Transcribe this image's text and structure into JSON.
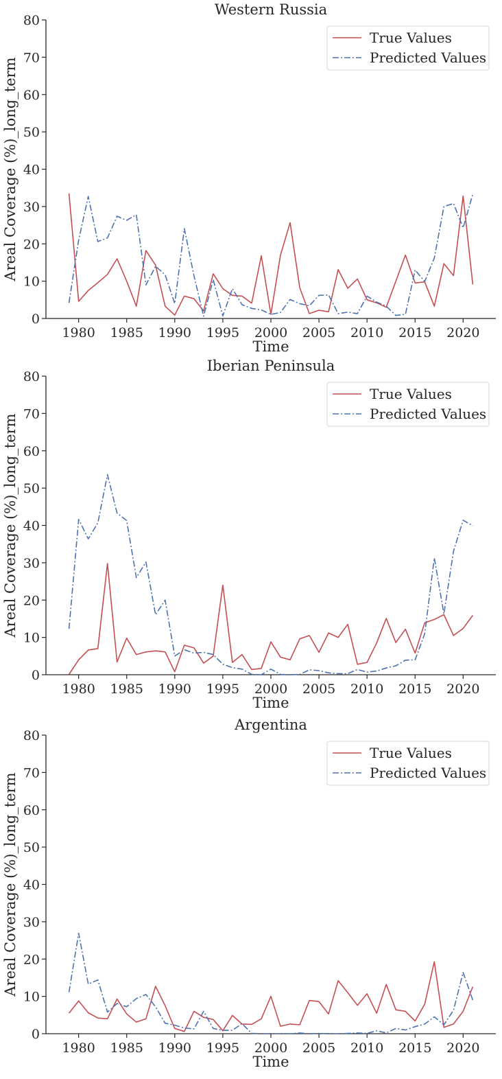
{
  "legend": {
    "true_label": "True Values",
    "pred_label": "Predicted Values"
  },
  "colors": {
    "true": "#c44e52",
    "predicted": "#4c72b0",
    "axis": "#262626"
  },
  "chart_data": [
    {
      "type": "line",
      "title": "Western Russia",
      "xlabel": "Time",
      "ylabel": "Areal Coverage (%)_long_term",
      "xlim": [
        1976.6,
        2023.4
      ],
      "ylim": [
        0,
        80
      ],
      "xticks": [
        1980,
        1985,
        1990,
        1995,
        2000,
        2005,
        2010,
        2015,
        2020
      ],
      "yticks": [
        0,
        10,
        20,
        30,
        40,
        50,
        60,
        70,
        80
      ],
      "legend_position": "top-right",
      "x": [
        1979,
        1980,
        1981,
        1982,
        1983,
        1984,
        1985,
        1986,
        1987,
        1988,
        1989,
        1990,
        1991,
        1992,
        1993,
        1994,
        1995,
        1996,
        1997,
        1998,
        1999,
        2000,
        2001,
        2002,
        2003,
        2004,
        2005,
        2006,
        2007,
        2008,
        2009,
        2010,
        2011,
        2012,
        2013,
        2014,
        2015,
        2016,
        2017,
        2018,
        2019,
        2020,
        2021
      ],
      "series": [
        {
          "name": "True Values",
          "values": [
            33.5,
            4.6,
            7.5,
            9.6,
            11.8,
            16.0,
            10.0,
            3.3,
            18.2,
            14.3,
            3.3,
            0.9,
            6.0,
            5.3,
            2.0,
            12.0,
            8.0,
            6.2,
            6.0,
            4.1,
            16.8,
            1.1,
            17.0,
            25.7,
            8.2,
            1.3,
            2.2,
            1.8,
            13.1,
            8.1,
            10.6,
            5.0,
            4.2,
            3.0,
            10.0,
            17.0,
            9.5,
            9.8,
            3.3,
            14.7,
            11.5,
            32.8,
            9.1
          ]
        },
        {
          "name": "Predicted Values",
          "values": [
            4.2,
            21.0,
            32.7,
            20.6,
            21.6,
            27.4,
            26.3,
            27.8,
            9.0,
            14.0,
            11.7,
            4.0,
            24.1,
            11.4,
            0.6,
            10.4,
            0.7,
            8.0,
            3.7,
            2.7,
            2.3,
            1.1,
            1.6,
            5.1,
            4.0,
            3.4,
            6.2,
            6.3,
            1.3,
            1.7,
            1.3,
            6.0,
            4.4,
            3.3,
            0.8,
            1.1,
            13.0,
            9.9,
            16.2,
            30.0,
            30.8,
            24.3,
            33.3
          ]
        }
      ]
    },
    {
      "type": "line",
      "title": "Iberian Peninsula",
      "xlabel": "Time",
      "ylabel": "Areal Coverage (%)_long_term",
      "xlim": [
        1976.6,
        2023.4
      ],
      "ylim": [
        0,
        80
      ],
      "xticks": [
        1980,
        1985,
        1990,
        1995,
        2000,
        2005,
        2010,
        2015,
        2020
      ],
      "yticks": [
        0,
        10,
        20,
        30,
        40,
        50,
        60,
        70,
        80
      ],
      "legend_position": "top-right",
      "x": [
        1979,
        1980,
        1981,
        1982,
        1983,
        1984,
        1985,
        1986,
        1987,
        1988,
        1989,
        1990,
        1991,
        1992,
        1993,
        1994,
        1995,
        1996,
        1997,
        1998,
        1999,
        2000,
        2001,
        2002,
        2003,
        2004,
        2005,
        2006,
        2007,
        2008,
        2009,
        2010,
        2011,
        2012,
        2013,
        2014,
        2015,
        2016,
        2017,
        2018,
        2019,
        2020,
        2021
      ],
      "series": [
        {
          "name": "True Values",
          "values": [
            0.1,
            4.0,
            6.6,
            7.0,
            29.8,
            3.4,
            9.8,
            5.4,
            6.1,
            6.4,
            6.1,
            0.8,
            7.9,
            7.2,
            3.1,
            5.0,
            24.0,
            3.3,
            5.4,
            1.4,
            1.7,
            8.8,
            4.7,
            4.0,
            9.6,
            10.5,
            6.0,
            11.2,
            10.0,
            13.5,
            2.8,
            3.3,
            8.5,
            15.1,
            8.6,
            12.2,
            5.8,
            13.9,
            14.8,
            16.1,
            10.5,
            12.4,
            15.9
          ]
        },
        {
          "name": "Predicted Values",
          "values": [
            12.3,
            41.6,
            36.4,
            40.7,
            53.6,
            43.3,
            41.3,
            26.0,
            30.2,
            16.1,
            20.0,
            5.0,
            6.7,
            5.8,
            6.0,
            5.4,
            2.8,
            1.9,
            1.5,
            0.1,
            0.0,
            1.5,
            0.1,
            0.0,
            0.1,
            1.3,
            1.1,
            0.5,
            0.3,
            0.3,
            1.4,
            0.7,
            1.0,
            1.8,
            2.4,
            3.9,
            4.0,
            11.0,
            31.3,
            16.3,
            33.1,
            41.4,
            39.9
          ]
        }
      ]
    },
    {
      "type": "line",
      "title": "Argentina",
      "xlabel": "Time",
      "ylabel": "Areal Coverage (%)_long_term",
      "xlim": [
        1976.6,
        2023.4
      ],
      "ylim": [
        0,
        80
      ],
      "xticks": [
        1980,
        1985,
        1990,
        1995,
        2000,
        2005,
        2010,
        2015,
        2020
      ],
      "yticks": [
        0,
        10,
        20,
        30,
        40,
        50,
        60,
        70,
        80
      ],
      "legend_position": "top-right",
      "x": [
        1979,
        1980,
        1981,
        1982,
        1983,
        1984,
        1985,
        1986,
        1987,
        1988,
        1989,
        1990,
        1991,
        1992,
        1993,
        1994,
        1995,
        1996,
        1997,
        1998,
        1999,
        2000,
        2001,
        2002,
        2003,
        2004,
        2005,
        2006,
        2007,
        2008,
        2009,
        2010,
        2011,
        2012,
        2013,
        2014,
        2015,
        2016,
        2017,
        2018,
        2019,
        2020,
        2021
      ],
      "series": [
        {
          "name": "True Values",
          "values": [
            5.5,
            8.8,
            5.6,
            4.2,
            4.0,
            9.3,
            5.3,
            3.1,
            4.0,
            12.7,
            7.5,
            1.4,
            0.6,
            6.0,
            4.4,
            3.8,
            0.8,
            4.9,
            2.6,
            2.5,
            4.0,
            10.0,
            2.0,
            2.6,
            2.4,
            8.9,
            8.6,
            5.3,
            14.2,
            11.0,
            7.6,
            10.7,
            5.5,
            13.2,
            6.4,
            6.0,
            3.4,
            7.9,
            19.3,
            1.7,
            2.6,
            6.0,
            12.6
          ]
        },
        {
          "name": "Predicted Values",
          "values": [
            11.1,
            26.9,
            13.3,
            14.4,
            5.8,
            8.1,
            7.2,
            9.4,
            10.5,
            7.2,
            2.8,
            2.3,
            1.5,
            1.3,
            6.0,
            1.4,
            0.9,
            0.9,
            2.7,
            0.1,
            0.0,
            0.0,
            0.0,
            0.0,
            0.2,
            0.0,
            0.1,
            0.0,
            0.0,
            0.1,
            0.2,
            0.1,
            0.8,
            0.2,
            1.4,
            1.0,
            1.9,
            2.6,
            4.5,
            2.4,
            6.3,
            16.4,
            9.0
          ]
        }
      ]
    }
  ]
}
